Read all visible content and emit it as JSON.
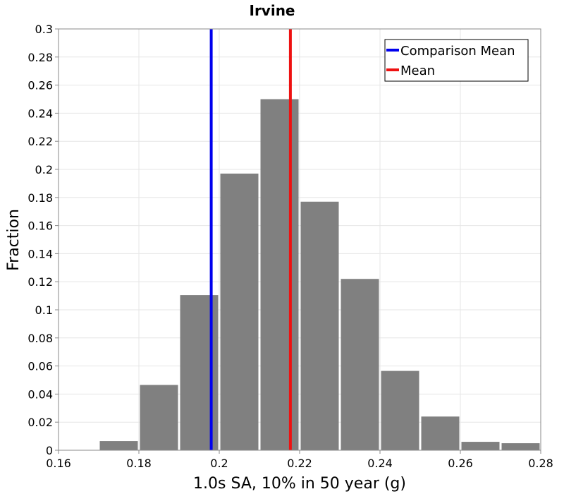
{
  "chart_data": {
    "type": "bar",
    "title": "Irvine",
    "xlabel": "1.0s SA, 10% in 50 year (g)",
    "ylabel": "Fraction",
    "xlim": [
      0.16,
      0.28
    ],
    "ylim": [
      0,
      0.3
    ],
    "bin_width": 0.01,
    "xticks": [
      "0.16",
      "0.18",
      "0.2",
      "0.22",
      "0.24",
      "0.26",
      "0.28"
    ],
    "yticks": [
      "0",
      "0.02",
      "0.04",
      "0.06",
      "0.08",
      "0.1",
      "0.12",
      "0.14",
      "0.16",
      "0.18",
      "0.2",
      "0.22",
      "0.24",
      "0.26",
      "0.28",
      "0.3"
    ],
    "bins": [
      {
        "x": 0.175,
        "value": 0.0065
      },
      {
        "x": 0.185,
        "value": 0.0465
      },
      {
        "x": 0.195,
        "value": 0.1105
      },
      {
        "x": 0.205,
        "value": 0.197
      },
      {
        "x": 0.215,
        "value": 0.25
      },
      {
        "x": 0.225,
        "value": 0.177
      },
      {
        "x": 0.235,
        "value": 0.122
      },
      {
        "x": 0.245,
        "value": 0.0565
      },
      {
        "x": 0.255,
        "value": 0.024
      },
      {
        "x": 0.265,
        "value": 0.006
      },
      {
        "x": 0.275,
        "value": 0.005
      }
    ],
    "bar_color": "#808080",
    "lines": [
      {
        "name": "Comparison Mean",
        "x": 0.198,
        "color": "#0000ee"
      },
      {
        "name": "Mean",
        "x": 0.2177,
        "color": "#ee1111"
      }
    ],
    "grid": true,
    "legend_position": "top-right"
  }
}
